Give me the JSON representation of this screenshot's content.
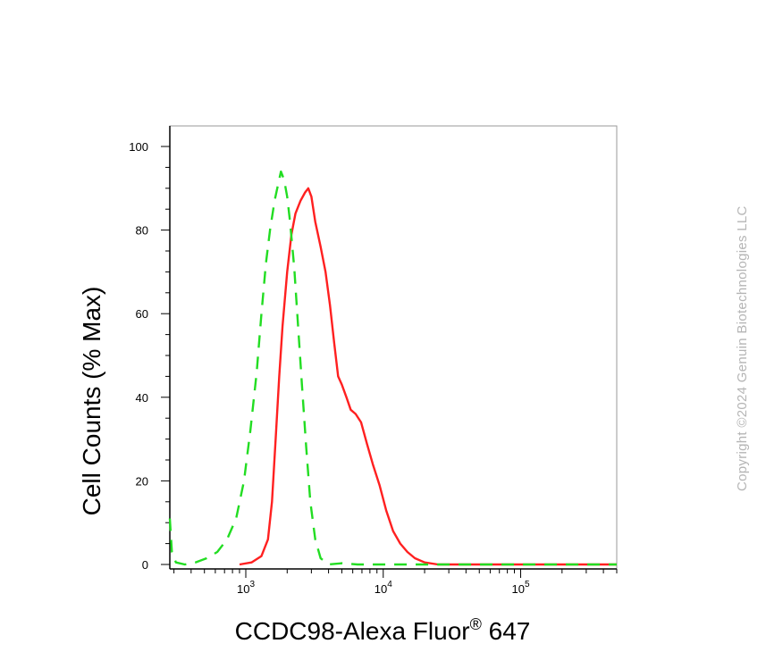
{
  "chart_data": {
    "type": "line",
    "title": "",
    "xlabel": "CCDC98-Alexa Fluor",
    "xlabel_sup": "®",
    "xlabel_suffix": " 647",
    "ylabel": "Cell Counts (% Max)",
    "xscale": "log",
    "xlim": [
      280,
      500000
    ],
    "ylim": [
      0,
      100
    ],
    "yticks": [
      0,
      20,
      40,
      60,
      80,
      100
    ],
    "xticks": [
      {
        "value": 1000,
        "base": "10",
        "exp": "3"
      },
      {
        "value": 10000,
        "base": "10",
        "exp": "4"
      },
      {
        "value": 100000,
        "base": "10",
        "exp": "5"
      }
    ],
    "grid": false,
    "legend": "none",
    "series": [
      {
        "color": "#ff2020",
        "style": "solid",
        "points": [
          [
            900,
            0
          ],
          [
            1100,
            0.5
          ],
          [
            1300,
            2
          ],
          [
            1450,
            6
          ],
          [
            1550,
            15
          ],
          [
            1650,
            30
          ],
          [
            1750,
            45
          ],
          [
            1850,
            57
          ],
          [
            2000,
            70
          ],
          [
            2150,
            79
          ],
          [
            2300,
            84
          ],
          [
            2500,
            87
          ],
          [
            2700,
            89
          ],
          [
            2850,
            90
          ],
          [
            3000,
            88
          ],
          [
            3200,
            82
          ],
          [
            3500,
            76
          ],
          [
            3800,
            70
          ],
          [
            4100,
            62
          ],
          [
            4400,
            53
          ],
          [
            4700,
            45
          ],
          [
            5000,
            43
          ],
          [
            5400,
            40
          ],
          [
            5800,
            37
          ],
          [
            6300,
            36
          ],
          [
            6900,
            34
          ],
          [
            7600,
            29
          ],
          [
            8400,
            24
          ],
          [
            9400,
            19
          ],
          [
            10500,
            13
          ],
          [
            11800,
            8
          ],
          [
            13300,
            5
          ],
          [
            15000,
            3
          ],
          [
            17000,
            1.5
          ],
          [
            20000,
            0.5
          ],
          [
            25000,
            0
          ],
          [
            500000,
            0
          ]
        ]
      },
      {
        "color": "#22dd22",
        "style": "dashed",
        "points": [
          [
            280,
            11
          ],
          [
            290,
            3
          ],
          [
            310,
            0.5
          ],
          [
            360,
            0
          ],
          [
            430,
            0.5
          ],
          [
            520,
            1.5
          ],
          [
            620,
            3
          ],
          [
            730,
            6
          ],
          [
            850,
            11
          ],
          [
            970,
            20
          ],
          [
            1080,
            32
          ],
          [
            1200,
            46
          ],
          [
            1300,
            60
          ],
          [
            1400,
            72
          ],
          [
            1500,
            80
          ],
          [
            1620,
            87
          ],
          [
            1720,
            91
          ],
          [
            1800,
            94
          ],
          [
            1900,
            92
          ],
          [
            2000,
            88
          ],
          [
            2100,
            82
          ],
          [
            2250,
            71
          ],
          [
            2400,
            57
          ],
          [
            2560,
            43
          ],
          [
            2750,
            28
          ],
          [
            2950,
            15
          ],
          [
            3200,
            6
          ],
          [
            3500,
            1.5
          ],
          [
            4000,
            0
          ],
          [
            5000,
            0.3
          ],
          [
            6500,
            0
          ],
          [
            500000,
            0
          ]
        ]
      }
    ]
  },
  "copyright": "Copyright ©2024 Genuin Biotechnologies LLC"
}
